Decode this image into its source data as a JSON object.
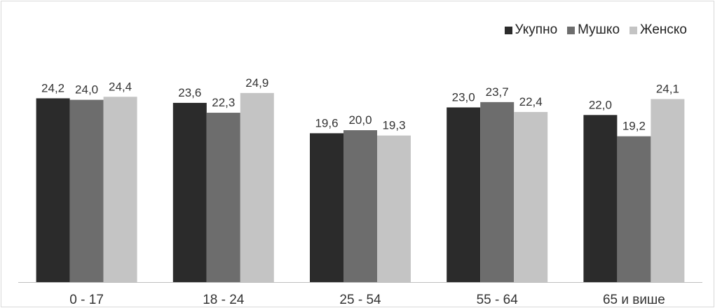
{
  "chart_data": {
    "type": "bar",
    "categories": [
      "0 - 17",
      "18 - 24",
      "25 - 54",
      "55 - 64",
      "65 и више"
    ],
    "series": [
      {
        "name": "Укупно",
        "color": "#2b2b2b",
        "values": [
          24.2,
          23.6,
          19.6,
          23.0,
          22.0
        ]
      },
      {
        "name": "Мушко",
        "color": "#6d6d6d",
        "values": [
          24.0,
          22.3,
          20.0,
          23.7,
          19.2
        ]
      },
      {
        "name": "Женско",
        "color": "#c4c4c4",
        "values": [
          24.4,
          24.9,
          19.3,
          22.4,
          24.1
        ]
      }
    ],
    "value_labels": [
      [
        "24,2",
        "23,6",
        "19,6",
        "23,0",
        "22,0"
      ],
      [
        "24,0",
        "22,3",
        "20,0",
        "23,7",
        "19,2"
      ],
      [
        "24,4",
        "24,9",
        "19,3",
        "22,4",
        "24,1"
      ]
    ],
    "ylim": [
      0,
      30
    ],
    "grid": false,
    "legend_position": "top-right",
    "title": "",
    "xlabel": "",
    "ylabel": ""
  }
}
